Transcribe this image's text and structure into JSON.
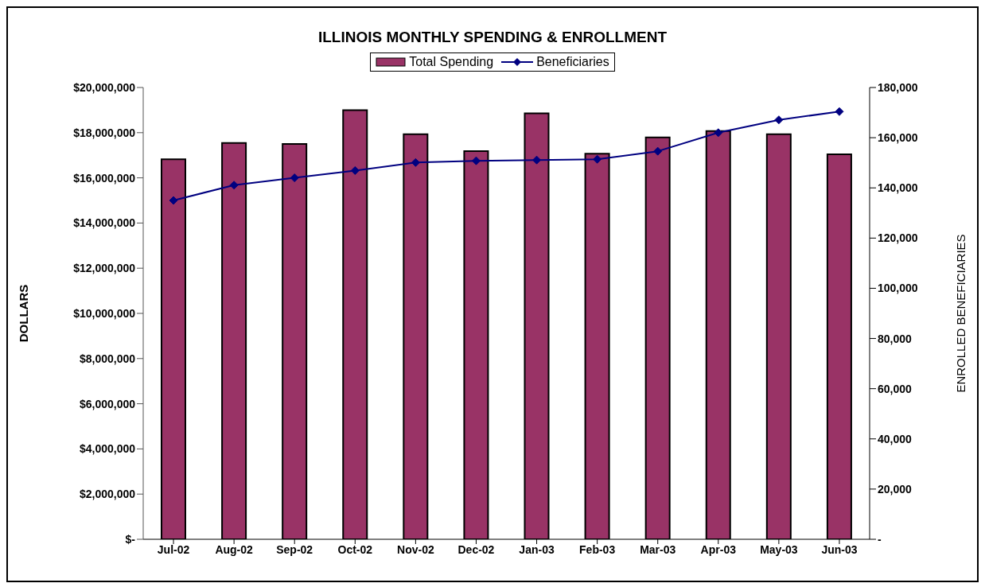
{
  "chart_data": {
    "type": "bar",
    "title": "ILLINOIS MONTHLY SPENDING & ENROLLMENT",
    "ylabel": "DOLLARS",
    "y2label": "ENROLLED BENEFICIARIES",
    "categories": [
      "Jul-02",
      "Aug-02",
      "Sep-02",
      "Oct-02",
      "Nov-02",
      "Dec-02",
      "Jan-03",
      "Feb-03",
      "Mar-03",
      "Apr-03",
      "May-03",
      "Jun-03"
    ],
    "series": [
      {
        "name": "Total Spending",
        "color": "#993366",
        "values": [
          16820000,
          17540000,
          17500000,
          19000000,
          17930000,
          17180000,
          18860000,
          17070000,
          17790000,
          18070000,
          17930000,
          17040000
        ]
      },
      {
        "name": "Beneficiaries",
        "type": "line",
        "axis": "y2",
        "color": "#000080",
        "marker": "diamond",
        "values": [
          135000,
          141100,
          144000,
          146900,
          150100,
          150800,
          151100,
          151400,
          154600,
          162000,
          167100,
          170400
        ]
      }
    ],
    "ylim": [
      0,
      20000000
    ],
    "yticks": [
      {
        "value": 0,
        "label": "$-"
      },
      {
        "value": 2000000,
        "label": "$2,000,000"
      },
      {
        "value": 4000000,
        "label": "$4,000,000"
      },
      {
        "value": 6000000,
        "label": "$6,000,000"
      },
      {
        "value": 8000000,
        "label": "$8,000,000"
      },
      {
        "value": 10000000,
        "label": "$10,000,000"
      },
      {
        "value": 12000000,
        "label": "$12,000,000"
      },
      {
        "value": 14000000,
        "label": "$14,000,000"
      },
      {
        "value": 16000000,
        "label": "$16,000,000"
      },
      {
        "value": 18000000,
        "label": "$18,000,000"
      },
      {
        "value": 20000000,
        "label": "$20,000,000"
      }
    ],
    "y2lim": [
      0,
      180000
    ],
    "y2ticks": [
      {
        "value": 0,
        "label": "-"
      },
      {
        "value": 20000,
        "label": "20,000"
      },
      {
        "value": 40000,
        "label": "40,000"
      },
      {
        "value": 60000,
        "label": "60,000"
      },
      {
        "value": 80000,
        "label": "80,000"
      },
      {
        "value": 100000,
        "label": "100,000"
      },
      {
        "value": 120000,
        "label": "120,000"
      },
      {
        "value": 140000,
        "label": "140,000"
      },
      {
        "value": 160000,
        "label": "160,000"
      },
      {
        "value": 180000,
        "label": "180,000"
      }
    ],
    "legend": "top"
  }
}
